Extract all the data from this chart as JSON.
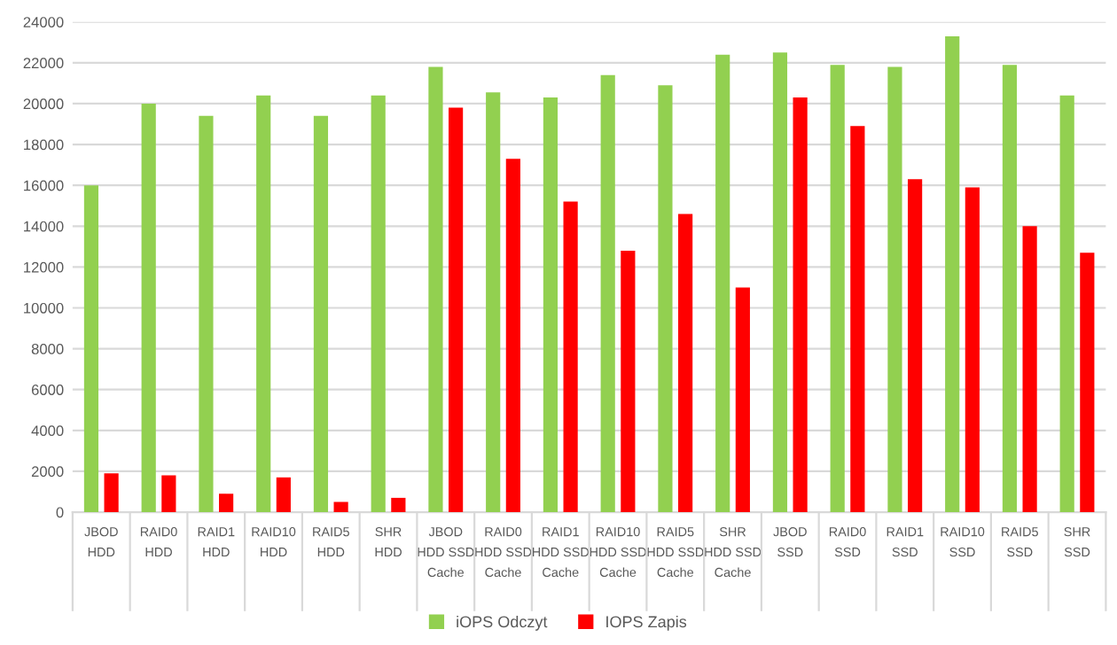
{
  "chart_data": {
    "type": "bar",
    "categories": [
      "JBOD\nHDD",
      "RAID0\nHDD",
      "RAID1\nHDD",
      "RAID10\nHDD",
      "RAID5\nHDD",
      "SHR\nHDD",
      "JBOD\nHDD SSD\nCache",
      "RAID0\nHDD SSD\nCache",
      "RAID1\nHDD SSD\nCache",
      "RAID10\nHDD SSD\nCache",
      "RAID5\nHDD SSD\nCache",
      "SHR\nHDD SSD\nCache",
      "JBOD\nSSD",
      "RAID0\nSSD",
      "RAID1\nSSD",
      "RAID10\nSSD",
      "RAID5\nSSD",
      "SHR\nSSD"
    ],
    "series": [
      {
        "name": "iOPS Odczyt",
        "color": "#92d050",
        "values": [
          16000,
          20000,
          19400,
          20400,
          19400,
          20400,
          21800,
          20550,
          20300,
          21400,
          20900,
          22400,
          22500,
          21900,
          21800,
          23300,
          21900,
          20400
        ]
      },
      {
        "name": "IOPS Zapis",
        "color": "#ff0000",
        "values": [
          1900,
          1800,
          900,
          1700,
          500,
          700,
          19800,
          17300,
          15200,
          12800,
          14600,
          11000,
          20300,
          18900,
          16300,
          15900,
          14000,
          12700
        ]
      }
    ],
    "ylim": [
      0,
      24000
    ],
    "yticks": [
      0,
      2000,
      4000,
      6000,
      8000,
      10000,
      12000,
      14000,
      16000,
      18000,
      20000,
      22000,
      24000
    ],
    "grid": "y",
    "legend": "bottom"
  }
}
